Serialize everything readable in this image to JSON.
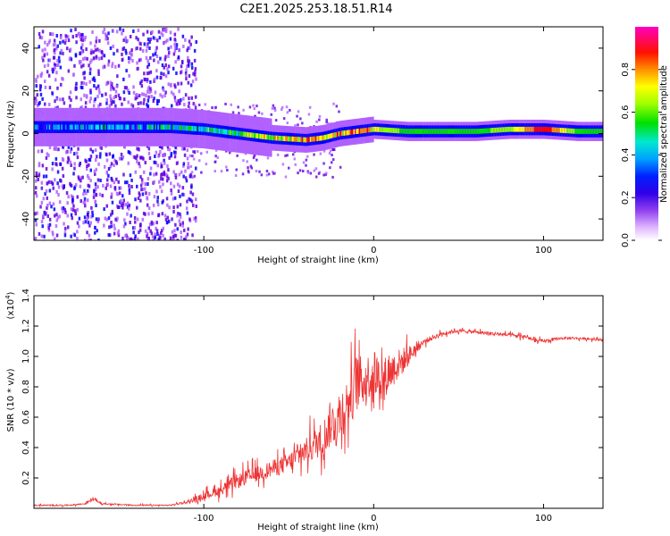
{
  "figure_title": "C2E1.2025.253.18.51.R14",
  "chart_data": [
    {
      "type": "heatmap",
      "name": "spectrogram",
      "xlabel": "Height of straight line (km)",
      "ylabel": "Frequency (Hz)",
      "xlim": [
        -200,
        135
      ],
      "ylim": [
        -50,
        50
      ],
      "xticks": [
        -100,
        0,
        100
      ],
      "xticklabels": [
        "-100",
        "0",
        "100"
      ],
      "yticks": [
        -40,
        -20,
        0,
        20,
        40
      ],
      "yticklabels": [
        "-40",
        "-20",
        "0",
        "20",
        "40"
      ],
      "colorbar": {
        "label": "Normalized spectral amplitude",
        "range": [
          0,
          1
        ],
        "ticks": [
          0.0,
          0.2,
          0.4,
          0.6,
          0.8
        ],
        "ticklabels": [
          "0.0",
          "0.2",
          "0.4",
          "0.6",
          "0.8"
        ],
        "colormap": [
          "#ffffff",
          "#b060ff",
          "#6000e0",
          "#0000ff",
          "#00a0ff",
          "#00e8e0",
          "#00e000",
          "#90ff00",
          "#ffff00",
          "#ff9000",
          "#ff0000",
          "#ff00b0"
        ]
      },
      "signal_track": {
        "x": [
          -200,
          -180,
          -160,
          -140,
          -120,
          -100,
          -80,
          -60,
          -40,
          -30,
          -20,
          -10,
          0,
          20,
          40,
          60,
          80,
          100,
          120,
          135
        ],
        "freq_hz": [
          3,
          3,
          3,
          3,
          3,
          2,
          0,
          -2,
          -3,
          -2,
          0,
          1,
          2,
          1,
          1,
          1,
          2,
          2,
          1,
          1
        ],
        "amplitude": [
          0.3,
          0.35,
          0.4,
          0.35,
          0.45,
          0.45,
          0.55,
          0.7,
          0.75,
          0.75,
          0.8,
          0.85,
          0.7,
          0.55,
          0.5,
          0.55,
          0.65,
          0.95,
          0.55,
          0.5
        ]
      }
    },
    {
      "type": "line",
      "name": "snr",
      "xlabel": "Height of straight line (km)",
      "ylabel": "SNR (10 * v/v)",
      "y_multiplier": "(x10",
      "y_multiplier_exp": "4",
      "y_multiplier_close": ")",
      "xlim": [
        -200,
        135
      ],
      "ylim": [
        0,
        1.4
      ],
      "xticks": [
        -100,
        0,
        100
      ],
      "xticklabels": [
        "-100",
        "0",
        "100"
      ],
      "yticks": [
        0.2,
        0.4,
        0.6,
        0.8,
        1.0,
        1.2,
        1.4
      ],
      "yticklabels": [
        "0.2",
        "0.4",
        "0.6",
        "0.8",
        "1.0",
        "1.2",
        "1.4"
      ],
      "color": "#ee3333",
      "series": [
        {
          "name": "SNR",
          "x": [
            -200,
            -180,
            -170,
            -165,
            -160,
            -140,
            -120,
            -110,
            -100,
            -90,
            -80,
            -70,
            -60,
            -50,
            -40,
            -30,
            -25,
            -20,
            -15,
            -10,
            -5,
            0,
            5,
            10,
            15,
            20,
            25,
            30,
            40,
            50,
            60,
            70,
            80,
            90,
            95,
            100,
            110,
            120,
            135
          ],
          "y": [
            0.02,
            0.02,
            0.03,
            0.06,
            0.03,
            0.02,
            0.02,
            0.04,
            0.08,
            0.12,
            0.18,
            0.22,
            0.26,
            0.3,
            0.38,
            0.46,
            0.55,
            0.62,
            0.7,
            0.82,
            0.85,
            0.9,
            0.85,
            0.9,
            0.95,
            1.0,
            1.05,
            1.1,
            1.15,
            1.17,
            1.16,
            1.15,
            1.14,
            1.13,
            1.1,
            1.1,
            1.12,
            1.12,
            1.11
          ],
          "spread": [
            0.01,
            0.01,
            0.01,
            0.02,
            0.01,
            0.01,
            0.01,
            0.02,
            0.06,
            0.08,
            0.12,
            0.12,
            0.14,
            0.16,
            0.2,
            0.3,
            0.35,
            0.45,
            0.4,
            0.45,
            0.4,
            0.35,
            0.35,
            0.3,
            0.25,
            0.18,
            0.08,
            0.05,
            0.03,
            0.03,
            0.03,
            0.03,
            0.03,
            0.03,
            0.04,
            0.03,
            0.02,
            0.02,
            0.02
          ]
        }
      ]
    }
  ]
}
